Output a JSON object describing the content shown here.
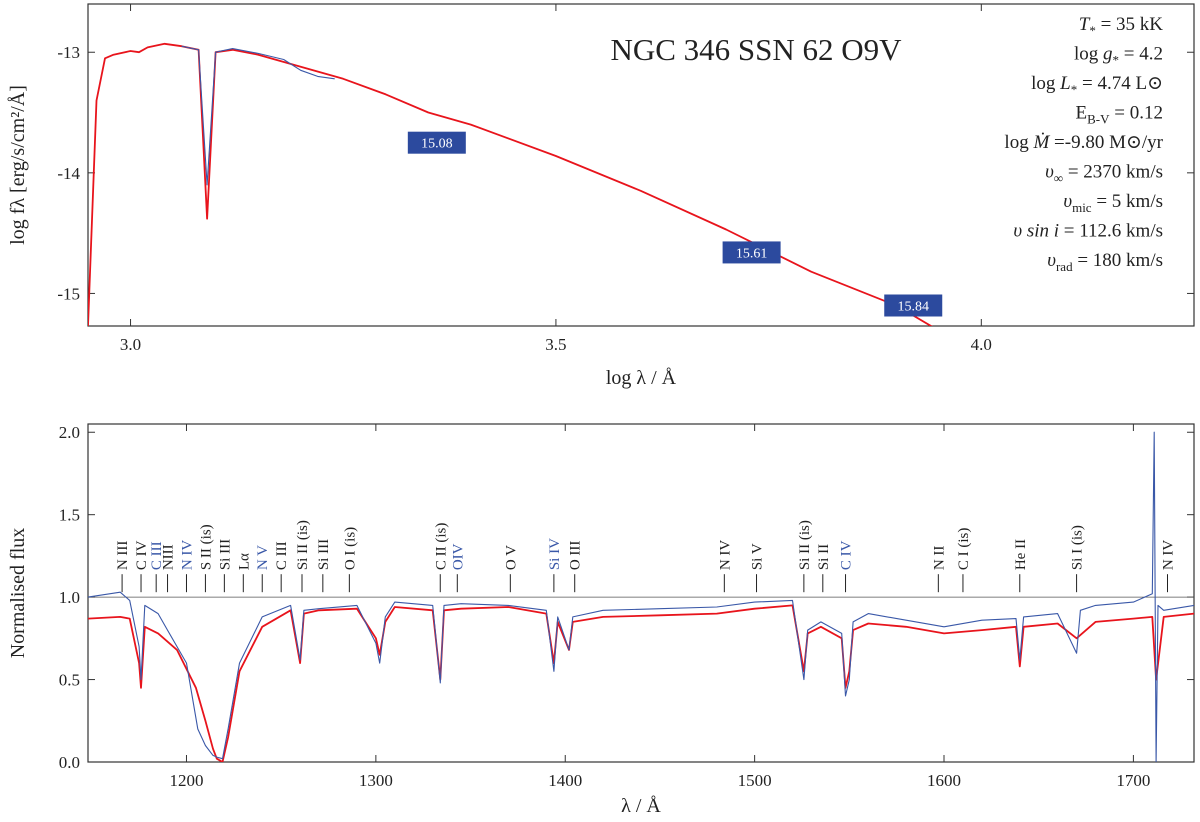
{
  "sed_panel": {
    "title": "NGC 346 SSN 62 O9V",
    "ylabel": "log fλ [erg/s/cm²/Å]",
    "xlabel": "log λ / Å",
    "parameters": [
      {
        "sym": "T",
        "sub": "*",
        "rest": " = 35 kK",
        "italic": true
      },
      {
        "pre": "log ",
        "sym": "g",
        "sub": "*",
        "rest": " =  4.2",
        "italic": true
      },
      {
        "pre": "log ",
        "sym": "L",
        "sub": "*",
        "rest": " = 4.74 L⊙",
        "italic": true
      },
      {
        "sym": "E",
        "sub": "B-V",
        "rest": " = 0.12",
        "italic": false
      },
      {
        "pre": "log ",
        "sym": "Ṁ",
        "sub": "",
        "rest": "  =-9.80 M⊙/yr",
        "italic": true
      },
      {
        "sym": "υ",
        "sub": "∞",
        "rest": " = 2370 km/s",
        "italic": true
      },
      {
        "sym": "υ",
        "sub": "mic",
        "rest": " = 5 km/s",
        "italic": true
      },
      {
        "sym": "υ sin i",
        "sub": "",
        "rest": " = 112.6 km/s",
        "italic": true
      },
      {
        "sym": "υ",
        "sub": "rad",
        "rest": " = 180 km/s",
        "italic": true
      }
    ],
    "magnitude_labels": [
      {
        "value": "15.08",
        "x": 3.36,
        "y": -13.75
      },
      {
        "value": "15.61",
        "x": 3.73,
        "y": -14.66
      },
      {
        "value": "15.84",
        "x": 3.92,
        "y": -15.1
      }
    ]
  },
  "spectrum_panel": {
    "ylabel": "Normalised flux",
    "xlabel": "λ / Å",
    "line_ids": [
      {
        "label": "N III",
        "x": 1166,
        "color": "#222222"
      },
      {
        "label": "C IV",
        "x": 1176,
        "color": "#222222"
      },
      {
        "label": "C III",
        "x": 1184,
        "color": "#3a58a8"
      },
      {
        "label": "NIII",
        "x": 1190,
        "color": "#222222"
      },
      {
        "label": "N IV",
        "x": 1200,
        "color": "#3a58a8"
      },
      {
        "label": "S II (is)",
        "x": 1210,
        "color": "#222222"
      },
      {
        "label": "Si III",
        "x": 1220,
        "color": "#222222"
      },
      {
        "label": "Lα",
        "x": 1230,
        "color": "#222222"
      },
      {
        "label": "N V",
        "x": 1240,
        "color": "#3a58a8"
      },
      {
        "label": "C III",
        "x": 1250,
        "color": "#222222"
      },
      {
        "label": "Si II (is)",
        "x": 1261,
        "color": "#222222"
      },
      {
        "label": "Si III",
        "x": 1272,
        "color": "#222222"
      },
      {
        "label": "O I (is)",
        "x": 1286,
        "color": "#222222"
      },
      {
        "label": "C II (is)",
        "x": 1334,
        "color": "#222222"
      },
      {
        "label": "OIV",
        "x": 1343,
        "color": "#3a58a8"
      },
      {
        "label": "O V",
        "x": 1371,
        "color": "#222222"
      },
      {
        "label": "Si IV",
        "x": 1394,
        "color": "#3a58a8"
      },
      {
        "label": "O III",
        "x": 1405,
        "color": "#222222"
      },
      {
        "label": "N IV",
        "x": 1484,
        "color": "#222222"
      },
      {
        "label": "Si V",
        "x": 1501,
        "color": "#222222"
      },
      {
        "label": "Si II (is)",
        "x": 1526,
        "color": "#222222"
      },
      {
        "label": "Si II",
        "x": 1536,
        "color": "#222222"
      },
      {
        "label": "C IV",
        "x": 1548,
        "color": "#3a58a8"
      },
      {
        "label": "N II",
        "x": 1597,
        "color": "#222222"
      },
      {
        "label": "C I (is)",
        "x": 1610,
        "color": "#222222"
      },
      {
        "label": "He II",
        "x": 1640,
        "color": "#222222"
      },
      {
        "label": "Si I (is)",
        "x": 1670,
        "color": "#222222"
      },
      {
        "label": "N IV",
        "x": 1718,
        "color": "#222222"
      }
    ]
  },
  "colors": {
    "model": "#e8141c",
    "observed": "#3a58a8",
    "magbox": "#2c4a9e",
    "axis": "#333333"
  },
  "chart_data": [
    {
      "type": "line",
      "title": "NGC 346 SSN 62 O9V",
      "xlabel": "log λ / Å",
      "ylabel": "log fλ [erg/s/cm²/Å]",
      "xlim": [
        2.95,
        4.25
      ],
      "ylim": [
        -15.27,
        -12.6
      ],
      "xticks": [
        3.0,
        3.5,
        4.0
      ],
      "yticks": [
        -13,
        -14,
        -15
      ],
      "series": [
        {
          "color": "#e8141c",
          "x": [
            2.95,
            2.96,
            2.97,
            2.98,
            3.0,
            3.01,
            3.02,
            3.04,
            3.06,
            3.08,
            3.09,
            3.1,
            3.12,
            3.15,
            3.2,
            3.25,
            3.3,
            3.35,
            3.4,
            3.5,
            3.6,
            3.7,
            3.8,
            3.9,
            3.96
          ],
          "y": [
            -15.27,
            -13.4,
            -13.05,
            -13.02,
            -12.99,
            -13.0,
            -12.96,
            -12.93,
            -12.95,
            -12.98,
            -14.38,
            -13.0,
            -12.98,
            -13.02,
            -13.12,
            -13.22,
            -13.35,
            -13.5,
            -13.6,
            -13.86,
            -14.15,
            -14.47,
            -14.82,
            -15.1,
            -15.35
          ]
        },
        {
          "color": "#3a58a8",
          "x": [
            3.06,
            3.08,
            3.09,
            3.1,
            3.12,
            3.15,
            3.18,
            3.2,
            3.22,
            3.24
          ],
          "y": [
            -12.95,
            -12.98,
            -14.1,
            -13.0,
            -12.97,
            -13.01,
            -13.06,
            -13.15,
            -13.2,
            -13.22
          ]
        }
      ]
    },
    {
      "type": "line",
      "xlabel": "λ / Å",
      "ylabel": "Normalised flux",
      "xlim": [
        1148,
        1732
      ],
      "ylim": [
        0.0,
        2.05
      ],
      "xticks": [
        1200,
        1300,
        1400,
        1500,
        1600,
        1700
      ],
      "yticks": [
        0.0,
        0.5,
        1.0,
        1.5,
        2.0
      ],
      "reference_line": 1.0,
      "series": [
        {
          "color": "#e8141c",
          "x": [
            1148,
            1165,
            1170,
            1175,
            1176,
            1178,
            1185,
            1195,
            1205,
            1210,
            1214,
            1216,
            1219,
            1222,
            1228,
            1240,
            1255,
            1260,
            1262,
            1270,
            1290,
            1300,
            1302,
            1305,
            1310,
            1330,
            1334,
            1336,
            1345,
            1370,
            1390,
            1394,
            1396,
            1402,
            1404,
            1420,
            1450,
            1480,
            1500,
            1520,
            1526,
            1528,
            1535,
            1546,
            1548,
            1550,
            1552,
            1560,
            1580,
            1600,
            1620,
            1638,
            1640,
            1642,
            1660,
            1670,
            1680,
            1700,
            1710,
            1712,
            1716,
            1732
          ],
          "y": [
            0.87,
            0.88,
            0.87,
            0.6,
            0.45,
            0.82,
            0.78,
            0.68,
            0.45,
            0.25,
            0.08,
            0.02,
            0.0,
            0.15,
            0.55,
            0.82,
            0.92,
            0.6,
            0.9,
            0.92,
            0.93,
            0.75,
            0.65,
            0.85,
            0.94,
            0.92,
            0.5,
            0.92,
            0.93,
            0.94,
            0.9,
            0.6,
            0.85,
            0.68,
            0.85,
            0.88,
            0.89,
            0.9,
            0.93,
            0.95,
            0.55,
            0.78,
            0.82,
            0.75,
            0.45,
            0.55,
            0.8,
            0.84,
            0.82,
            0.78,
            0.8,
            0.82,
            0.58,
            0.82,
            0.84,
            0.75,
            0.85,
            0.87,
            0.88,
            0.5,
            0.88,
            0.9
          ]
        },
        {
          "color": "#3a58a8",
          "x": [
            1148,
            1165,
            1170,
            1175,
            1176,
            1178,
            1185,
            1190,
            1200,
            1206,
            1210,
            1214,
            1216,
            1219,
            1222,
            1228,
            1240,
            1255,
            1260,
            1262,
            1270,
            1290,
            1300,
            1302,
            1305,
            1310,
            1330,
            1334,
            1336,
            1345,
            1370,
            1390,
            1394,
            1396,
            1402,
            1404,
            1420,
            1450,
            1480,
            1500,
            1520,
            1526,
            1528,
            1535,
            1546,
            1548,
            1550,
            1552,
            1560,
            1580,
            1600,
            1620,
            1638,
            1640,
            1642,
            1660,
            1670,
            1672,
            1680,
            1700,
            1710,
            1711,
            1712,
            1713,
            1716,
            1732
          ],
          "y": [
            1.0,
            1.03,
            0.98,
            0.7,
            0.5,
            0.95,
            0.9,
            0.8,
            0.6,
            0.2,
            0.1,
            0.04,
            0.03,
            0.02,
            0.2,
            0.6,
            0.88,
            0.95,
            0.62,
            0.92,
            0.93,
            0.95,
            0.72,
            0.6,
            0.88,
            0.97,
            0.95,
            0.48,
            0.95,
            0.96,
            0.95,
            0.92,
            0.55,
            0.88,
            0.68,
            0.88,
            0.92,
            0.93,
            0.94,
            0.97,
            0.98,
            0.5,
            0.8,
            0.85,
            0.78,
            0.4,
            0.5,
            0.85,
            0.9,
            0.86,
            0.82,
            0.86,
            0.87,
            0.62,
            0.88,
            0.9,
            0.66,
            0.92,
            0.95,
            0.97,
            1.02,
            2.0,
            0.0,
            0.95,
            0.92,
            0.95
          ]
        }
      ]
    }
  ]
}
